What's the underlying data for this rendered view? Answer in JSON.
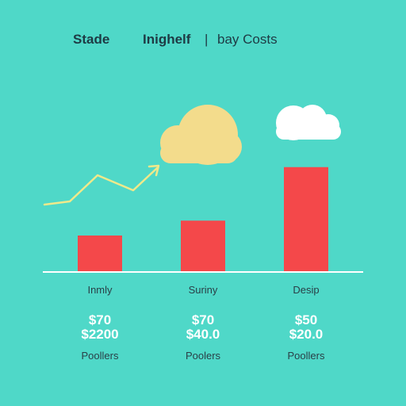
{
  "header": {
    "left": "Stade",
    "middle": "Inighelf",
    "separator": "|",
    "right": "bay Costs"
  },
  "chart_data": {
    "type": "bar",
    "categories": [
      "Inmly",
      "Suriny",
      "Desip"
    ],
    "values": [
      12,
      17,
      35
    ],
    "ylim": [
      0,
      40
    ],
    "value_labels_top": [
      "$70",
      "$70",
      "$50"
    ],
    "value_labels_bottom": [
      "$2200",
      "$40.0",
      "$20.0"
    ],
    "footer_labels": [
      "Poollers",
      "Poolers",
      "Poollers"
    ],
    "grid": false,
    "colors": {
      "bar": "#f4484a",
      "trend_line": "#f0e98a",
      "cloud_yellow": "#f3dc8c",
      "cloud_white": "#ffffff",
      "background": "#4fd8c8",
      "baseline": "#ffffff"
    }
  }
}
